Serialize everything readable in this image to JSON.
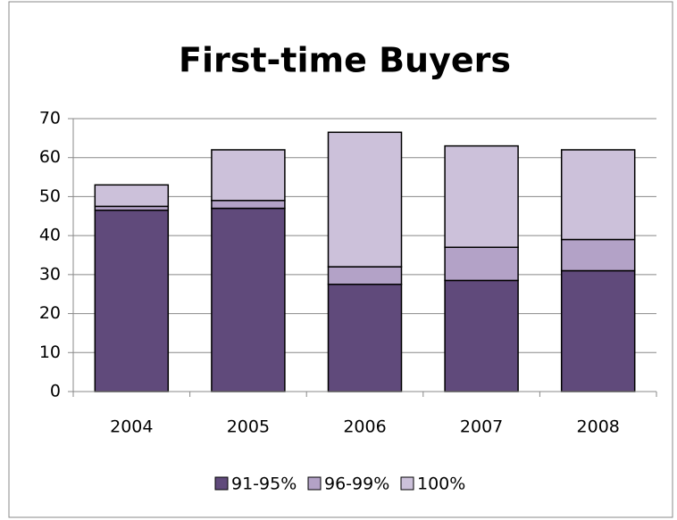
{
  "chart_data": {
    "type": "stacked-bar",
    "title": "First-time Buyers",
    "categories": [
      "2004",
      "2005",
      "2006",
      "2007",
      "2008"
    ],
    "series": [
      {
        "name": "91-95%",
        "color": "#604a7b",
        "values": [
          46.5,
          47,
          27.5,
          28.5,
          31
        ]
      },
      {
        "name": "96-99%",
        "color": "#b3a2c7",
        "values": [
          1,
          2,
          4.5,
          8.5,
          8
        ]
      },
      {
        "name": "100%",
        "color": "#ccc1da",
        "values": [
          5.5,
          13,
          34.5,
          26,
          23
        ]
      }
    ],
    "ylim": [
      0,
      70
    ],
    "yticks": [
      0,
      10,
      20,
      30,
      40,
      50,
      60,
      70
    ],
    "grid": true,
    "legend": "bottom"
  }
}
